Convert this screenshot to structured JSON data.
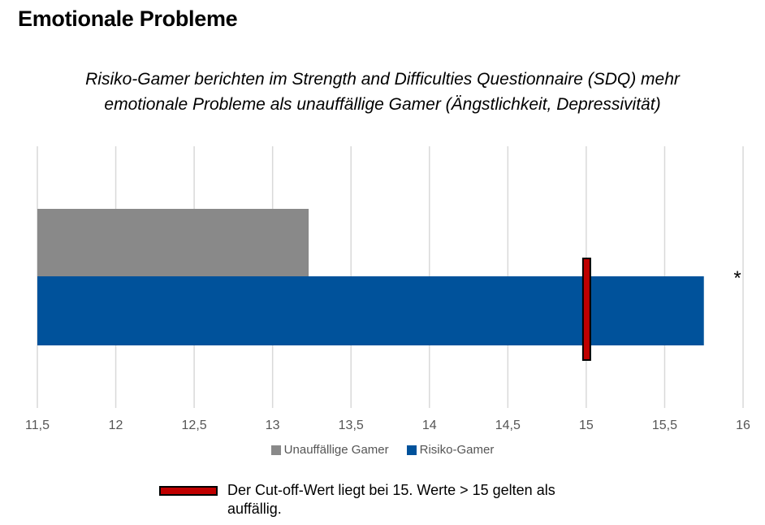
{
  "header": {
    "title": "Emotionale Probleme",
    "subtitle_line1": "Risiko-Gamer berichten im Strength and Difficulties Questionnaire (SDQ) mehr",
    "subtitle_line2": "emotionale Probleme als unauffällige Gamer (Ängstlichkeit, Depressivität)"
  },
  "chart_data": {
    "type": "bar",
    "orientation": "horizontal",
    "series": [
      {
        "name": "Unauffällige Gamer",
        "value": 13.23,
        "color": "#898989"
      },
      {
        "name": "Risiko-Gamer",
        "value": 15.75,
        "color": "#00529b"
      }
    ],
    "xlim": [
      11.5,
      16
    ],
    "ticks": [
      11.5,
      12,
      12.5,
      13,
      13.5,
      14,
      14.5,
      15,
      15.5,
      16
    ],
    "tick_labels": [
      "11,5",
      "12",
      "12,5",
      "13",
      "13,5",
      "14",
      "14,5",
      "15",
      "15,5",
      "16"
    ],
    "grid": true,
    "legend_position": "bottom",
    "cutoff": {
      "value": 15,
      "color": "#c00000"
    },
    "significance_marker": "*"
  },
  "cutoff_note": {
    "text": "Der Cut-off-Wert liegt bei 15. Werte > 15 gelten als auffällig."
  }
}
